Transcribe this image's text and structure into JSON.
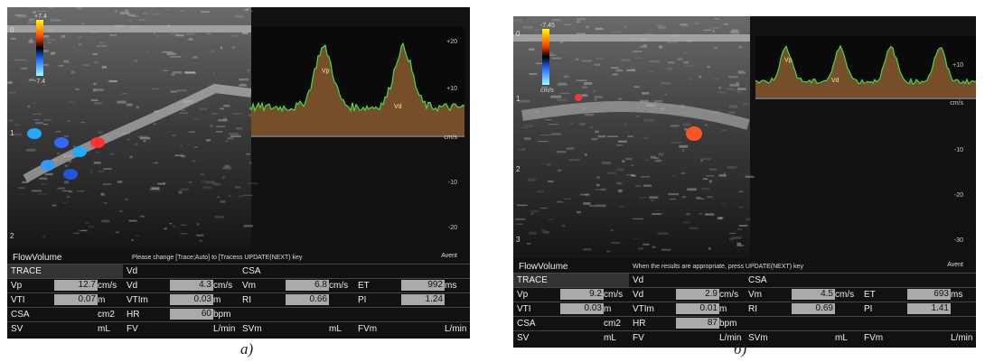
{
  "panels": [
    {
      "caption": "а)",
      "color_bar_labels": [
        "+7.4",
        "-7.4"
      ],
      "depth_labels": [
        "0",
        "1",
        "2"
      ],
      "velocity_labels": [
        "+20",
        "+10",
        "cm/s",
        "-10",
        "-20"
      ],
      "trace_markers": [
        "Vp",
        "Vd"
      ],
      "mode_label": "FlowVolume",
      "message": "Please change [Trace;Auto] to [Tracess UPDATE(NEXT) key",
      "brand": "Avent",
      "table": [
        [
          {
            "label": "TRACE"
          },
          {
            "label": "Vd"
          },
          {
            "label": "CSA"
          }
        ],
        [
          {
            "label": "Vp",
            "value": "12.7",
            "unit": "cm/s"
          },
          {
            "label": "Vd",
            "value": "4.3",
            "unit": "cm/s"
          },
          {
            "label": "Vm",
            "value": "6.8",
            "unit": "cm/s"
          },
          {
            "label": "ET",
            "value": "992",
            "unit": "ms"
          }
        ],
        [
          {
            "label": "VTI",
            "value": "0.07",
            "unit": "m"
          },
          {
            "label": "VTIm",
            "value": "0.03",
            "unit": "m"
          },
          {
            "label": "RI",
            "value": "0.66"
          },
          {
            "label": "PI",
            "value": "1.24"
          }
        ],
        [
          {
            "label": "CSA",
            "unit": "cm2"
          },
          {
            "label": "HR",
            "value": "60",
            "unit": "bpm"
          }
        ],
        [
          {
            "label": "SV",
            "unit": "mL"
          },
          {
            "label": "FV",
            "unit": "L/min"
          },
          {
            "label": "SVm",
            "unit": "mL"
          },
          {
            "label": "FVm",
            "unit": "L/min"
          }
        ]
      ]
    },
    {
      "caption": "б)",
      "color_bar_labels": [
        "-7.45",
        "cm/s"
      ],
      "depth_labels": [
        "0",
        "1",
        "2",
        "3"
      ],
      "velocity_labels": [
        "+10",
        "cm/s",
        "-10",
        "-20",
        "-30"
      ],
      "trace_markers": [
        "Vp",
        "Vd"
      ],
      "mode_label": "FlowVolume",
      "message": "When the results are appropriate, press UPDATE(NEXT) key",
      "brand": "Avent",
      "table": [
        [
          {
            "label": "TRACE"
          },
          {
            "label": "Vd"
          },
          {
            "label": "CSA"
          }
        ],
        [
          {
            "label": "Vp",
            "value": "9.2",
            "unit": "cm/s"
          },
          {
            "label": "Vd",
            "value": "2.9",
            "unit": "cm/s"
          },
          {
            "label": "Vm",
            "value": "4.5",
            "unit": "cm/s"
          },
          {
            "label": "ET",
            "value": "693",
            "unit": "ms"
          }
        ],
        [
          {
            "label": "VTI",
            "value": "0.03",
            "unit": "m"
          },
          {
            "label": "VTIm",
            "value": "0.01",
            "unit": "m"
          },
          {
            "label": "RI",
            "value": "0.69"
          },
          {
            "label": "PI",
            "value": "1.41"
          }
        ],
        [
          {
            "label": "CSA",
            "unit": "cm2"
          },
          {
            "label": "HR",
            "value": "87",
            "unit": "bpm"
          }
        ],
        [
          {
            "label": "SV",
            "unit": "mL"
          },
          {
            "label": "FV",
            "unit": "L/min"
          },
          {
            "label": "SVm",
            "unit": "mL"
          },
          {
            "label": "FVm",
            "unit": "L/min"
          }
        ]
      ]
    }
  ]
}
